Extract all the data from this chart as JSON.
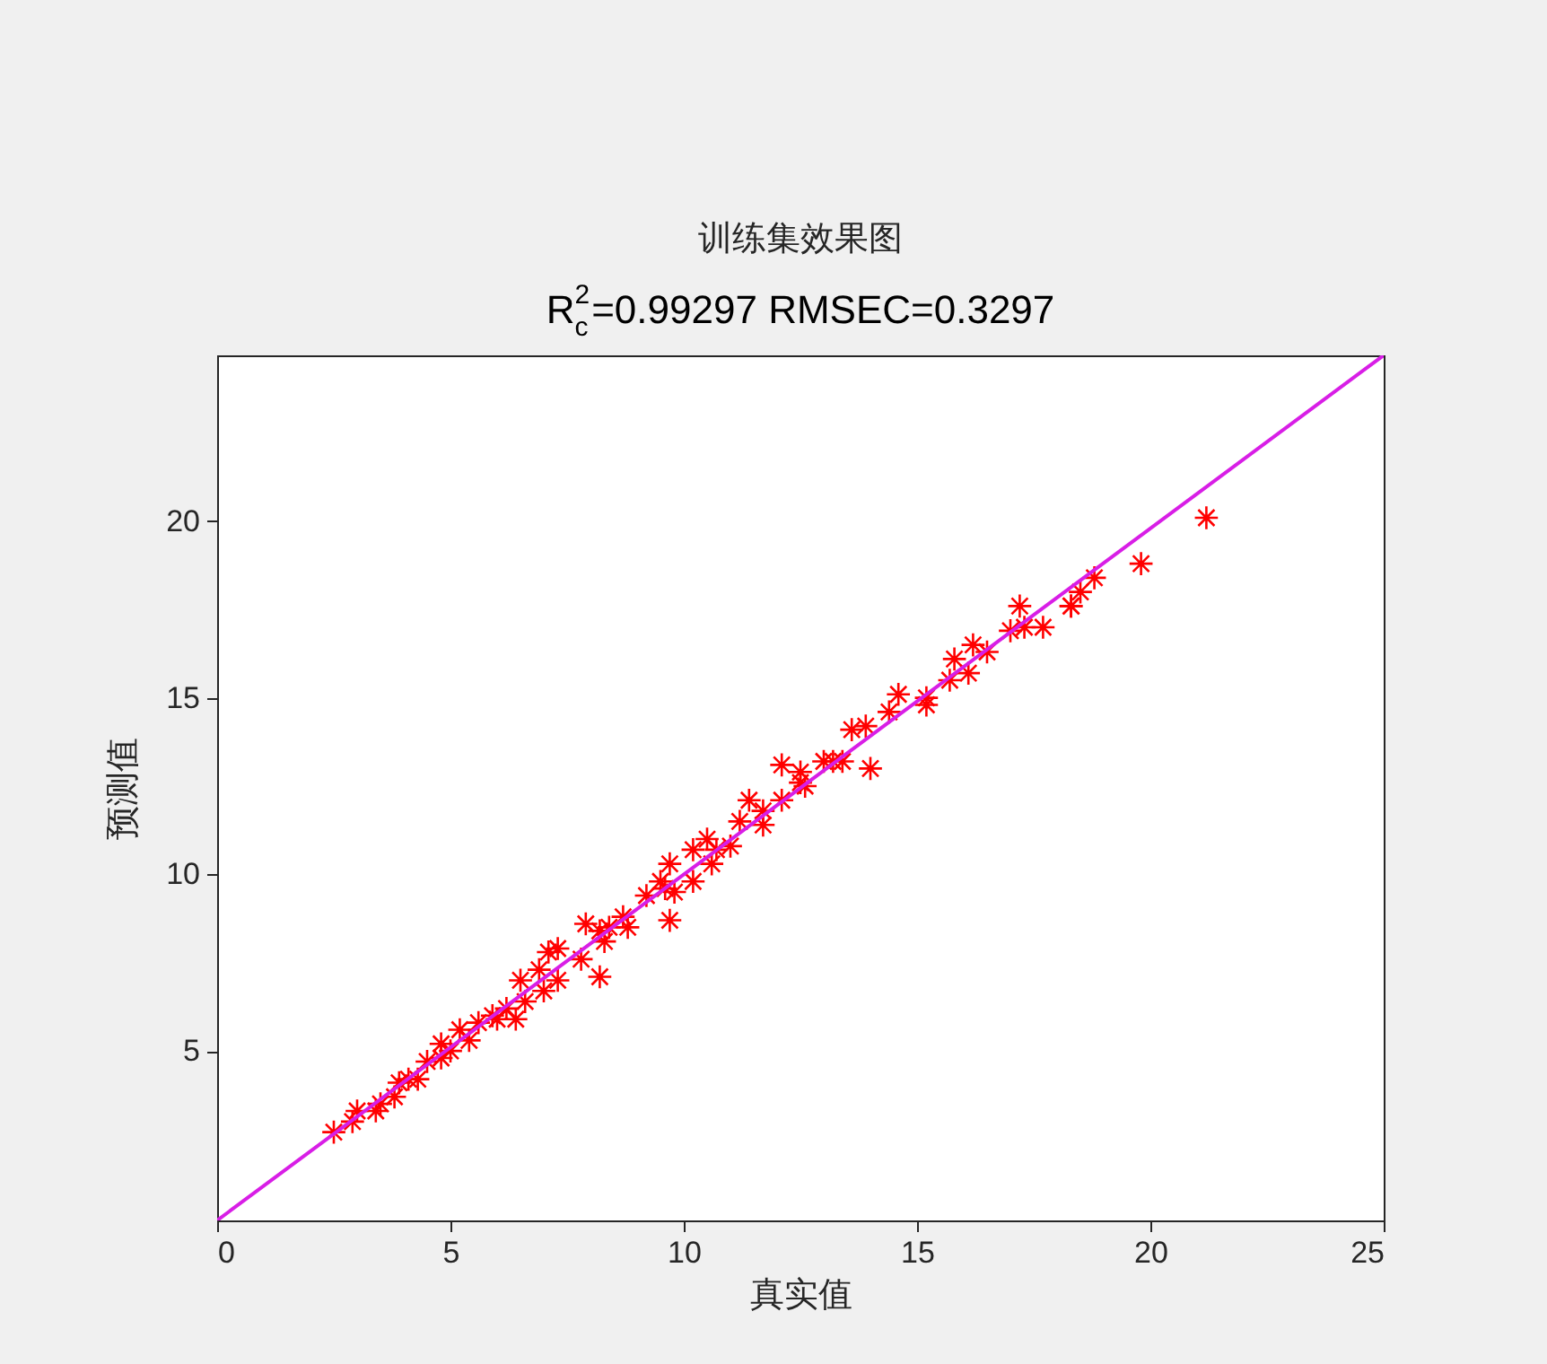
{
  "chart_data": {
    "type": "scatter",
    "title": "训练集效果图",
    "subtitle": "R$_{c}$$^{2}$=0.99297 RMSEC=0.3297",
    "xlabel": "真实值",
    "ylabel": "预测值",
    "xlim": [
      0,
      25
    ],
    "xticks": [
      0,
      5,
      10,
      15,
      20,
      25
    ],
    "ylim": [
      0.2,
      24.7
    ],
    "yticks": [
      5,
      10,
      15,
      20
    ],
    "series": [
      {
        "color": "#ff0000",
        "marker": "cross",
        "x": [
          2.5,
          2.9,
          3.0,
          3.4,
          3.5,
          3.8,
          3.9,
          4.1,
          4.3,
          4.5,
          4.8,
          4.8,
          5.0,
          5.2,
          5.4,
          5.6,
          5.9,
          6.0,
          6.2,
          6.4,
          6.5,
          6.6,
          6.9,
          7.0,
          7.1,
          7.3,
          7.3,
          7.8,
          7.9,
          8.2,
          8.2,
          8.3,
          8.4,
          8.7,
          8.8,
          9.2,
          9.5,
          9.6,
          9.7,
          9.7,
          9.8,
          10.2,
          10.2,
          10.5,
          10.6,
          10.7,
          11.0,
          11.2,
          11.4,
          11.7,
          11.7,
          12.1,
          12.1,
          12.5,
          12.5,
          12.6,
          13.0,
          13.2,
          13.4,
          13.6,
          13.9,
          14.0,
          14.4,
          14.6,
          15.2,
          15.2,
          15.7,
          15.8,
          16.1,
          16.2,
          16.5,
          17.0,
          17.2,
          17.3,
          17.7,
          18.3,
          18.3,
          18.5,
          18.8,
          19.8,
          21.2
        ],
        "values": [
          2.7,
          3.0,
          3.3,
          3.3,
          3.5,
          3.7,
          4.1,
          4.2,
          4.2,
          4.7,
          4.8,
          5.2,
          5.0,
          5.6,
          5.3,
          5.8,
          6.0,
          5.9,
          6.2,
          5.9,
          7.0,
          6.4,
          7.3,
          6.7,
          7.8,
          7.0,
          7.9,
          7.6,
          8.6,
          7.1,
          8.4,
          8.1,
          8.5,
          8.8,
          8.5,
          9.4,
          9.8,
          9.6,
          10.3,
          8.7,
          9.5,
          9.8,
          10.7,
          11.0,
          10.3,
          10.7,
          10.8,
          11.5,
          12.1,
          11.8,
          11.4,
          12.1,
          13.1,
          12.9,
          12.6,
          12.5,
          13.2,
          13.2,
          13.2,
          14.1,
          14.2,
          13.0,
          14.6,
          15.1,
          15.0,
          14.8,
          15.5,
          16.1,
          15.7,
          16.5,
          16.3,
          16.9,
          17.6,
          17.0,
          17.0,
          17.6,
          17.6,
          18.0,
          18.4,
          18.8,
          20.1
        ]
      },
      {
        "type": "line",
        "color": "#d81ee6",
        "marker": "none",
        "x": [
          0,
          25
        ],
        "values": [
          0.2,
          24.7
        ]
      }
    ]
  }
}
